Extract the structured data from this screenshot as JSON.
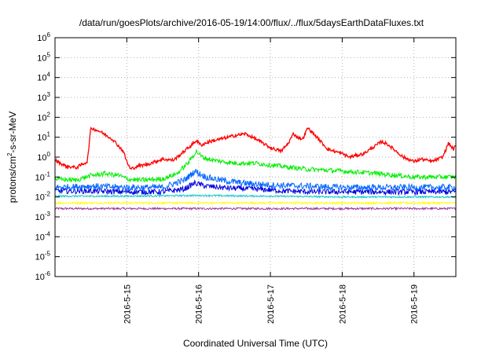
{
  "chart_data": {
    "type": "line",
    "title": "/data/run/goesPlots/archive/2016-05-19/14:00/flux/../flux/5daysEarthDataFluxes.txt",
    "xlabel": "Coordinated Universal Time (UTC)",
    "ylabel": {
      "prefix": "protons/cm",
      "sup": "2",
      "suffix": "-s-sr-MeV"
    },
    "yscale": "log",
    "ylim_exponents": [
      -6,
      6
    ],
    "y_tick_base": "10",
    "y_tick_exponents": [
      "6",
      "5",
      "4",
      "3",
      "2",
      "1",
      "0",
      "-1",
      "-2",
      "-3",
      "-4",
      "-5",
      "-6"
    ],
    "x_range_days": [
      "2016-05-14 00:00",
      "2016-05-19 14:00"
    ],
    "x_ticks": [
      "2016-5-15",
      "2016-5-16",
      "2016-5-17",
      "2016-5-18",
      "2016-5-19"
    ],
    "grid": true,
    "legend": "none",
    "series": [
      {
        "color": "#ff0000",
        "x_days": [
          0.0,
          0.15,
          0.3,
          0.45,
          0.5,
          0.55,
          0.62,
          0.8,
          0.95,
          1.0,
          1.05,
          1.15,
          1.3,
          1.5,
          1.65,
          1.8,
          1.9,
          1.97,
          2.03,
          2.15,
          2.3,
          2.5,
          2.65,
          2.8,
          3.0,
          3.15,
          3.25,
          3.32,
          3.38,
          3.45,
          3.52,
          3.6,
          3.8,
          4.0,
          4.1,
          4.3,
          4.45,
          4.55,
          4.6,
          4.65,
          4.75,
          4.85,
          5.0,
          5.1,
          5.25,
          5.4,
          5.48,
          5.55,
          5.58
        ],
        "y": [
          0.7,
          0.35,
          0.3,
          0.6,
          30,
          25,
          20,
          8,
          2.0,
          0.6,
          0.25,
          0.35,
          0.45,
          0.8,
          0.7,
          2.0,
          4.0,
          7.0,
          4.0,
          6.0,
          8.0,
          12,
          15,
          8,
          3.0,
          2.0,
          5,
          15,
          10,
          8,
          30,
          15,
          2.5,
          1.5,
          1.0,
          1.5,
          3.5,
          6,
          5,
          4,
          2.0,
          1.0,
          0.6,
          0.8,
          0.6,
          1.0,
          5,
          2.5,
          3.5
        ]
      },
      {
        "color": "#00ee00",
        "x_days": [
          0.0,
          0.3,
          0.5,
          0.7,
          0.9,
          1.0,
          1.2,
          1.5,
          1.7,
          1.85,
          1.97,
          2.05,
          2.2,
          2.5,
          2.8,
          3.0,
          3.5,
          4.0,
          4.5,
          5.0,
          5.58
        ],
        "y": [
          0.08,
          0.07,
          0.12,
          0.15,
          0.12,
          0.08,
          0.07,
          0.08,
          0.15,
          0.5,
          2.0,
          1.0,
          0.7,
          0.5,
          0.5,
          0.4,
          0.25,
          0.2,
          0.15,
          0.1,
          0.1
        ]
      },
      {
        "color": "#0066ff",
        "x_days": [
          0.0,
          0.5,
          1.0,
          1.5,
          1.8,
          1.95,
          2.1,
          2.3,
          2.6,
          3.0,
          3.5,
          4.0,
          4.5,
          5.0,
          5.58
        ],
        "y": [
          0.03,
          0.035,
          0.03,
          0.03,
          0.07,
          0.2,
          0.1,
          0.07,
          0.05,
          0.04,
          0.035,
          0.03,
          0.03,
          0.03,
          0.03
        ]
      },
      {
        "color": "#0000dd",
        "x_days": [
          0.0,
          0.5,
          1.0,
          1.5,
          1.8,
          1.95,
          2.1,
          2.4,
          2.8,
          3.2,
          3.6,
          4.0,
          4.5,
          5.0,
          5.58
        ],
        "y": [
          0.02,
          0.02,
          0.018,
          0.018,
          0.025,
          0.05,
          0.035,
          0.028,
          0.025,
          0.02,
          0.018,
          0.018,
          0.018,
          0.018,
          0.018
        ]
      },
      {
        "color": "#00cccc",
        "x_days": [
          0.0,
          1.0,
          2.0,
          3.0,
          4.0,
          5.0,
          5.58
        ],
        "y": [
          0.011,
          0.011,
          0.012,
          0.011,
          0.01,
          0.01,
          0.01
        ]
      },
      {
        "color": "#ffff00",
        "x_days": [
          0.0,
          1.0,
          2.0,
          3.0,
          4.0,
          5.0,
          5.58
        ],
        "y": [
          0.005,
          0.005,
          0.005,
          0.005,
          0.005,
          0.005,
          0.005
        ]
      },
      {
        "color": "#993399",
        "x_days": [
          0.0,
          1.0,
          2.0,
          3.0,
          4.0,
          5.0,
          5.58
        ],
        "y": [
          0.0026,
          0.0026,
          0.0026,
          0.0026,
          0.0026,
          0.0026,
          0.0026
        ]
      }
    ]
  }
}
